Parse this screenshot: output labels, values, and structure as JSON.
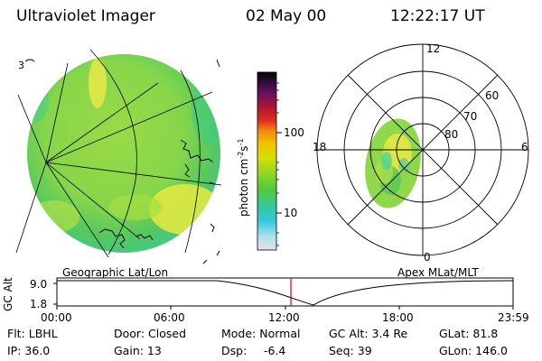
{
  "header": {
    "title": "Ultraviolet Imager",
    "date": "02 May 00",
    "time": "12:22:17 UT"
  },
  "colorbar": {
    "unit": "photon cm",
    "unit_sup1": "-2",
    "unit_s": "s",
    "unit_sup2": "-1",
    "tick_high": "100",
    "tick_low": "10",
    "colors": [
      "#0a0a0a",
      "#3a1040",
      "#6a1060",
      "#b01830",
      "#e02a20",
      "#f08a10",
      "#f2c000",
      "#d8e000",
      "#98d820",
      "#52c840",
      "#30c8a0",
      "#38c8e0",
      "#a8e0f0",
      "#dcdcdc"
    ]
  },
  "panels": {
    "left_label": "Geographic Lat/Lon",
    "right_label": "Apex MLat/MLT",
    "corner_mark": "3"
  },
  "polar": {
    "mlt_labels": {
      "top": "12",
      "left": "18",
      "right": "6",
      "bottom": "0"
    },
    "lat_labels": [
      "60",
      "70",
      "80"
    ]
  },
  "altitude_plot": {
    "ylabel": "GC Alt",
    "y_max": "9.0",
    "y_min": "1.8",
    "x_ticks": [
      "00:00",
      "06:00",
      "12:00",
      "18:00",
      "23:59"
    ],
    "marker_time": "12:22:17"
  },
  "footer": {
    "flt": "Flt: LBHL",
    "ip": "IP: 36.0",
    "door": "Door: Closed",
    "gain": "Gain: 13",
    "mode": "Mode: Normal",
    "dsp_label": "Dsp:",
    "dsp_value": "-6.4",
    "gc_alt": "GC Alt: 3.4 Re",
    "seq": "Seq: 39",
    "glat": "GLat:  81.8",
    "glon": "GLon: 146.0"
  },
  "colors": {
    "aurora_green": "#8ed84a",
    "aurora_yellow": "#e8e840",
    "aurora_cyan": "#40d0a0",
    "marker_red": "#e00000"
  }
}
